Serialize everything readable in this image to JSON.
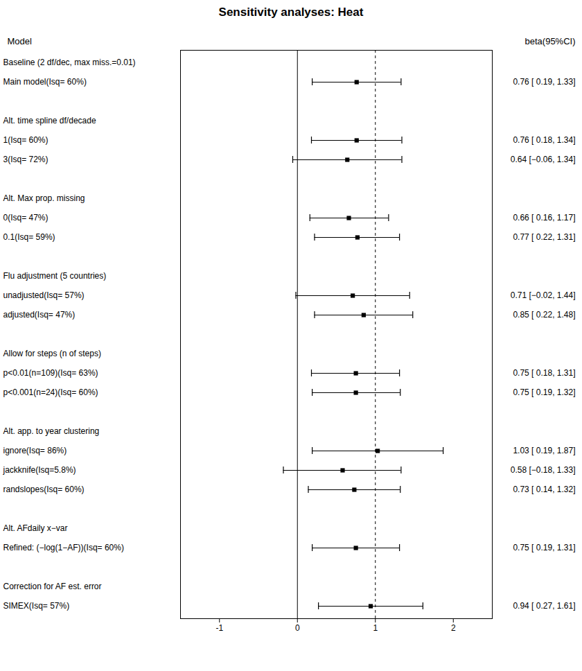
{
  "chart_data": {
    "type": "forest",
    "title": "Sensitivity analyses: Heat",
    "header_left": "Model",
    "header_right": "beta(95%CI)",
    "xlim": [
      -1.5,
      2.5
    ],
    "xticks": [
      -1,
      0,
      1,
      2
    ],
    "reference_lines": [
      {
        "value": 0,
        "line_style": "solid"
      },
      {
        "value": 1,
        "line_style": "dashed"
      }
    ],
    "categories": [
      "Baseline (2 df/dec, max miss.=0.01)",
      "Main model(Isq= 60%)",
      null,
      "Alt. time spline df/decade",
      "1(Isq= 60%)",
      "3(Isq= 72%)",
      null,
      "Alt. Max prop. missing",
      "0(Isq= 47%)",
      "0.1(Isq= 59%)",
      null,
      "Flu adjustment (5 countries)",
      "unadjusted(Isq= 57%)",
      "adjusted(Isq= 47%)",
      null,
      "Allow for steps (n of steps)",
      "p<0.01(n=109)(Isq= 63%)",
      "p<0.001(n=24)(Isq= 60%)",
      null,
      "Alt. app. to year clustering",
      "ignore(Isq= 86%)",
      "jackknife(Isq=5.8%)",
      "randslopes(Isq= 60%)",
      null,
      "Alt. AFdaily x−var",
      "Refined: (−log(1−AF))(Isq= 60%)",
      null,
      "Correction for AF est. error",
      "SIMEX(Isq= 57%)"
    ],
    "values": [
      null,
      0.76,
      null,
      null,
      0.76,
      0.64,
      null,
      null,
      0.66,
      0.77,
      null,
      null,
      0.71,
      0.85,
      null,
      null,
      0.75,
      0.75,
      null,
      null,
      1.03,
      0.58,
      0.73,
      null,
      null,
      0.75,
      null,
      null,
      0.94
    ],
    "ci_low": [
      null,
      0.19,
      null,
      null,
      0.18,
      -0.06,
      null,
      null,
      0.16,
      0.22,
      null,
      null,
      -0.02,
      0.22,
      null,
      null,
      0.18,
      0.19,
      null,
      null,
      0.19,
      -0.18,
      0.14,
      null,
      null,
      0.19,
      null,
      null,
      0.27
    ],
    "ci_high": [
      null,
      1.33,
      null,
      null,
      1.34,
      1.34,
      null,
      null,
      1.17,
      1.31,
      null,
      null,
      1.44,
      1.48,
      null,
      null,
      1.31,
      1.32,
      null,
      null,
      1.87,
      1.33,
      1.32,
      null,
      null,
      1.31,
      null,
      null,
      1.61
    ],
    "value_labels": [
      null,
      "0.76 [ 0.19, 1.33]",
      null,
      null,
      "0.76 [ 0.18, 1.34]",
      "0.64 [−0.06, 1.34]",
      null,
      null,
      "0.66 [ 0.16, 1.17]",
      "0.77 [ 0.22, 1.31]",
      null,
      null,
      "0.71 [−0.02, 1.44]",
      "0.85 [ 0.22, 1.48]",
      null,
      null,
      "0.75 [ 0.18, 1.31]",
      "0.75 [ 0.19, 1.32]",
      null,
      null,
      "1.03 [ 0.19, 1.87]",
      "0.58 [−0.18, 1.33]",
      "0.73 [ 0.14, 1.32]",
      null,
      null,
      "0.75 [ 0.19, 1.31]",
      null,
      null,
      "0.94 [ 0.27, 1.61]"
    ]
  }
}
